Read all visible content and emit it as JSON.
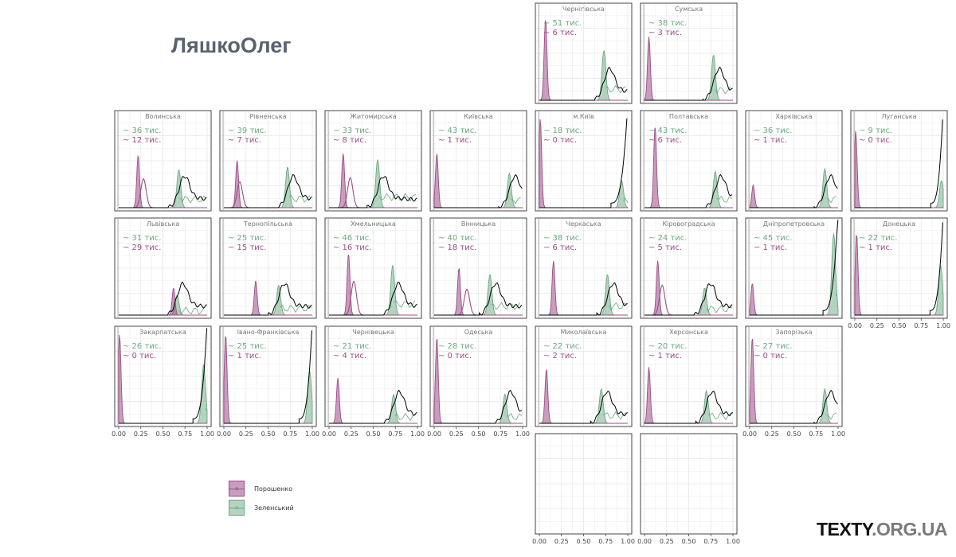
{
  "title": "ЛяшкоОлег",
  "brand": {
    "main": "TEXTY",
    "domain": ".ORG.UA"
  },
  "colors": {
    "poroshenko": "#9c4d86",
    "zelensky": "#6aaa80",
    "black_line": "#000000",
    "grid": "#e6e6e6",
    "panel_border": "#444444",
    "strip_text": "#777777"
  },
  "legend": [
    {
      "key": "a",
      "label": "Порошенко",
      "color": "#9c4d86"
    },
    {
      "key": "a",
      "label": "Зеленський",
      "color": "#6aaa80"
    }
  ],
  "chart_data": {
    "type": "area",
    "facet_layout": "geographic grid of Ukrainian oblasts",
    "x_range": [
      0,
      1
    ],
    "x_ticks": [
      "0.00",
      "0.25",
      "0.50",
      "0.75",
      "1.00"
    ],
    "grid": true,
    "legend_placement": "bottom-left",
    "series_names": [
      "Порошенко",
      "Зеленський"
    ],
    "panels": [
      {
        "name": "Чернігівська",
        "z": "51",
        "p": "6",
        "col": 4,
        "row": 0,
        "zm": 0.73,
        "pm": 0.07,
        "pm2": null,
        "zh": 0.55,
        "ph": 0.9
      },
      {
        "name": "Сумська",
        "z": "38",
        "p": "3",
        "col": 5,
        "row": 0,
        "zm": 0.78,
        "pm": 0.05,
        "pm2": null,
        "zh": 0.5,
        "ph": 0.7
      },
      {
        "name": "Волинська",
        "z": "36",
        "p": "12",
        "col": 0,
        "row": 1,
        "zm": 0.68,
        "pm": 0.22,
        "pm2": 0.28,
        "zh": 0.42,
        "ph": 0.58
      },
      {
        "name": "Рівненська",
        "z": "39",
        "p": "7",
        "col": 1,
        "row": 1,
        "zm": 0.72,
        "pm": 0.15,
        "pm2": 0.18,
        "zh": 0.45,
        "ph": 0.52
      },
      {
        "name": "Житомирська",
        "z": "33",
        "p": "8",
        "col": 2,
        "row": 1,
        "zm": 0.55,
        "pm": 0.16,
        "pm2": 0.24,
        "zh": 0.53,
        "ph": 0.6
      },
      {
        "name": "Київська",
        "z": "43",
        "p": "1",
        "col": 3,
        "row": 1,
        "zm": 0.85,
        "pm": 0.03,
        "pm2": null,
        "zh": 0.38,
        "ph": 0.6
      },
      {
        "name": "м.Київ",
        "z": "18",
        "p": "0",
        "col": 4,
        "row": 1,
        "zm": 0.93,
        "pm": 0.01,
        "pm2": null,
        "zh": 0.3,
        "ph": 0.98
      },
      {
        "name": "Полтавська",
        "z": "43",
        "p": "6",
        "col": 5,
        "row": 1,
        "zm": 0.8,
        "pm": 0.12,
        "pm2": null,
        "zh": 0.4,
        "ph": 0.9
      },
      {
        "name": "Харківська",
        "z": "36",
        "p": "1",
        "col": 6,
        "row": 1,
        "zm": 0.85,
        "pm": 0.04,
        "pm2": null,
        "zh": 0.43,
        "ph": 0.25
      },
      {
        "name": "Луганська",
        "z": "9",
        "p": "0",
        "col": 7,
        "row": 1,
        "zm": 0.98,
        "pm": 0.01,
        "pm2": null,
        "zh": 0.3,
        "ph": 0.85
      },
      {
        "name": "Львівська",
        "z": "31",
        "p": "29",
        "col": 0,
        "row": 2,
        "zm": 0.66,
        "pm": 0.62,
        "pm2": null,
        "zh": 0.22,
        "ph": 0.3
      },
      {
        "name": "Тернопільська",
        "z": "25",
        "p": "15",
        "col": 1,
        "row": 2,
        "zm": 0.62,
        "pm": 0.36,
        "pm2": null,
        "zh": 0.33,
        "ph": 0.38
      },
      {
        "name": "Хмельницька",
        "z": "46",
        "p": "16",
        "col": 2,
        "row": 2,
        "zm": 0.72,
        "pm": 0.22,
        "pm2": 0.28,
        "zh": 0.55,
        "ph": 0.68
      },
      {
        "name": "Вінницька",
        "z": "40",
        "p": "18",
        "col": 3,
        "row": 2,
        "zm": 0.63,
        "pm": 0.28,
        "pm2": 0.37,
        "zh": 0.45,
        "ph": 0.52
      },
      {
        "name": "Черкаська",
        "z": "38",
        "p": "6",
        "col": 4,
        "row": 2,
        "zm": 0.77,
        "pm": 0.16,
        "pm2": null,
        "zh": 0.45,
        "ph": 0.6
      },
      {
        "name": "Кіровоградська",
        "z": "24",
        "p": "5",
        "col": 5,
        "row": 2,
        "zm": 0.68,
        "pm": 0.15,
        "pm2": 0.2,
        "zh": 0.3,
        "ph": 0.6
      },
      {
        "name": "Дніпропетровська",
        "z": "45",
        "p": "1",
        "col": 6,
        "row": 2,
        "zm": 0.95,
        "pm": 0.03,
        "pm2": null,
        "zh": 0.9,
        "ph": 0.35
      },
      {
        "name": "Донецька",
        "z": "22",
        "p": "1",
        "col": 7,
        "row": 2,
        "zm": 0.97,
        "pm": 0.02,
        "pm2": null,
        "zh": 0.55,
        "ph": 0.9
      },
      {
        "name": "Закарпатська",
        "z": "26",
        "p": "0",
        "col": 0,
        "row": 3,
        "zm": 0.96,
        "pm": 0.01,
        "pm2": null,
        "zh": 0.65,
        "ph": 0.98
      },
      {
        "name": "Івано-Франківська",
        "z": "25",
        "p": "1",
        "col": 1,
        "row": 3,
        "zm": 0.97,
        "pm": 0.02,
        "pm2": null,
        "zh": 0.58,
        "ph": 0.98
      },
      {
        "name": "Чернівецька",
        "z": "21",
        "p": "4",
        "col": 2,
        "row": 3,
        "zm": 0.73,
        "pm": 0.1,
        "pm2": null,
        "zh": 0.32,
        "ph": 0.5
      },
      {
        "name": "Одеська",
        "z": "28",
        "p": "0",
        "col": 3,
        "row": 3,
        "zm": 0.8,
        "pm": 0.03,
        "pm2": null,
        "zh": 0.32,
        "ph": 0.95
      },
      {
        "name": "Миколаївська",
        "z": "22",
        "p": "2",
        "col": 4,
        "row": 3,
        "zm": 0.7,
        "pm": 0.08,
        "pm2": null,
        "zh": 0.38,
        "ph": 0.6
      },
      {
        "name": "Херсонська",
        "z": "20",
        "p": "1",
        "col": 5,
        "row": 3,
        "zm": 0.7,
        "pm": 0.05,
        "pm2": null,
        "zh": 0.36,
        "ph": 0.62
      },
      {
        "name": "Запорізька",
        "z": "27",
        "p": "0",
        "col": 6,
        "row": 3,
        "zm": 0.85,
        "pm": 0.03,
        "pm2": null,
        "zh": 0.38,
        "ph": 0.95
      },
      {
        "name": "",
        "z": "",
        "p": "",
        "col": 4,
        "row": 4,
        "empty": true
      },
      {
        "name": "",
        "z": "",
        "p": "",
        "col": 5,
        "row": 4,
        "empty": true
      }
    ],
    "label_prefix": "~",
    "label_suffix": "тис."
  }
}
